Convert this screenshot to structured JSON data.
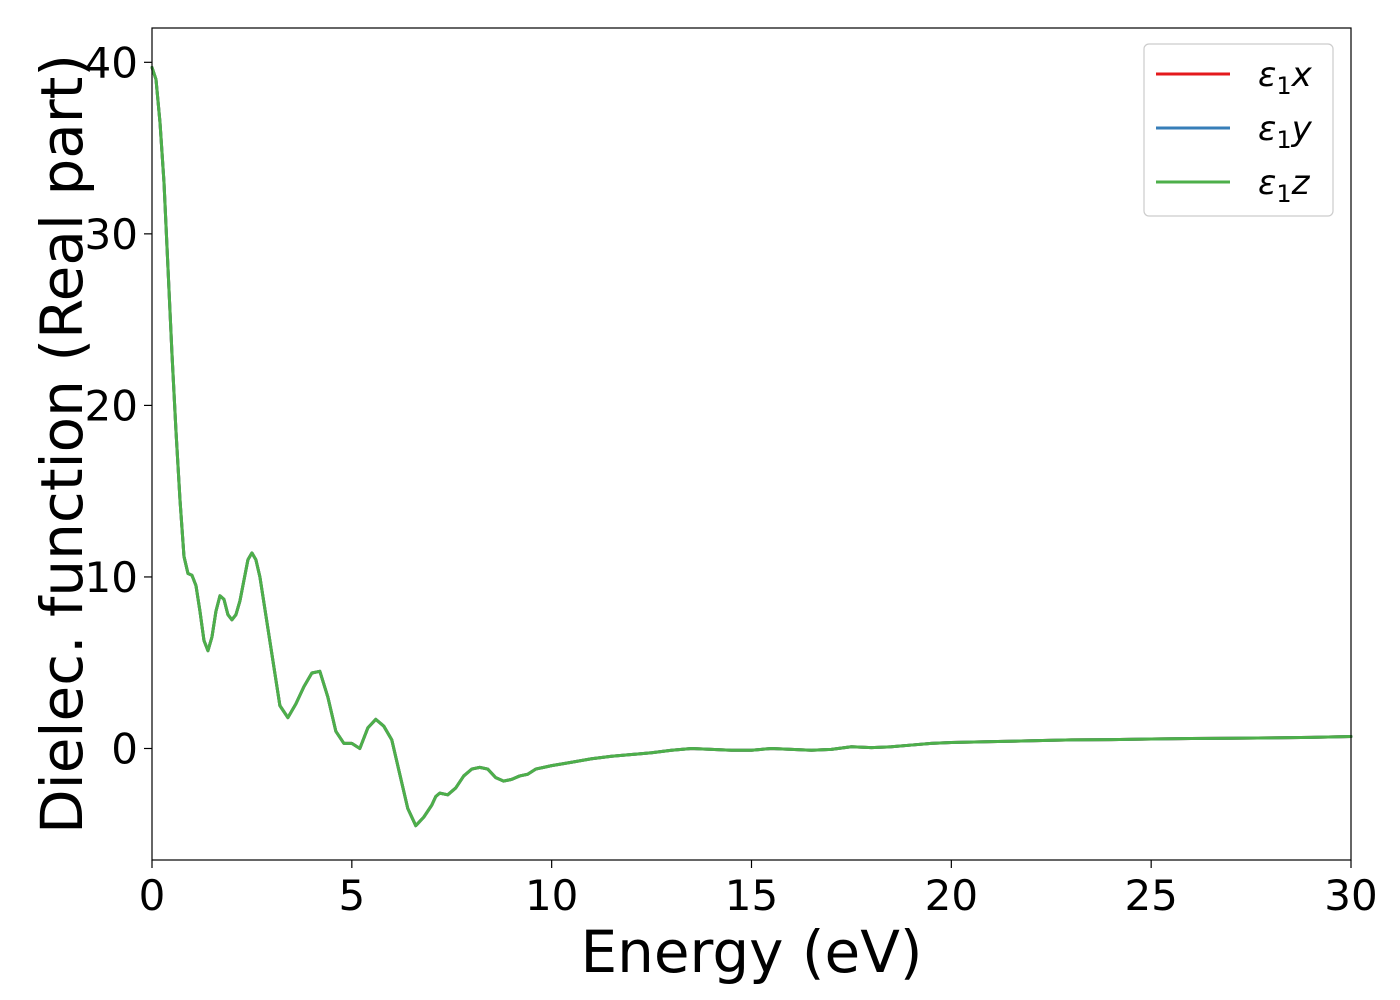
{
  "chart_data": {
    "type": "line",
    "title": "",
    "xlabel": "Energy (eV)",
    "ylabel": "Dielec. function (Real part)",
    "xlim": [
      0,
      30
    ],
    "ylim": [
      -6.5,
      42
    ],
    "xticks": [
      0,
      5,
      10,
      15,
      20,
      25,
      30
    ],
    "yticks": [
      0,
      10,
      20,
      30,
      40
    ],
    "grid": false,
    "legend_position": "top-right",
    "x": [
      0,
      0.1,
      0.2,
      0.3,
      0.4,
      0.5,
      0.6,
      0.7,
      0.8,
      0.9,
      1.0,
      1.1,
      1.2,
      1.3,
      1.4,
      1.5,
      1.6,
      1.7,
      1.8,
      1.9,
      2.0,
      2.1,
      2.2,
      2.3,
      2.4,
      2.5,
      2.6,
      2.7,
      2.8,
      2.9,
      3.0,
      3.2,
      3.4,
      3.6,
      3.8,
      4.0,
      4.2,
      4.4,
      4.6,
      4.8,
      5.0,
      5.2,
      5.4,
      5.6,
      5.8,
      6.0,
      6.2,
      6.4,
      6.6,
      6.8,
      7.0,
      7.1,
      7.2,
      7.4,
      7.6,
      7.8,
      8.0,
      8.2,
      8.4,
      8.6,
      8.8,
      9.0,
      9.2,
      9.4,
      9.6,
      9.8,
      10.0,
      10.5,
      11.0,
      11.5,
      12.0,
      12.5,
      13.0,
      13.5,
      14.0,
      14.5,
      15.0,
      15.5,
      16.0,
      16.5,
      17.0,
      17.5,
      18.0,
      18.5,
      19.0,
      19.5,
      20.0,
      21.0,
      22.0,
      23.0,
      24.0,
      25.0,
      26.0,
      27.0,
      28.0,
      29.0,
      30.0
    ],
    "series": [
      {
        "name": "ε1x",
        "color": "#e41a1c",
        "values": [
          39.7,
          39.0,
          36.5,
          33.0,
          28.0,
          23.0,
          18.5,
          14.5,
          11.2,
          10.2,
          10.1,
          9.5,
          8.0,
          6.3,
          5.7,
          6.5,
          8.0,
          8.9,
          8.7,
          7.8,
          7.5,
          7.8,
          8.6,
          9.8,
          11.0,
          11.4,
          11.0,
          10.0,
          8.5,
          7.0,
          5.5,
          2.5,
          1.8,
          2.6,
          3.6,
          4.4,
          4.5,
          3.0,
          1.0,
          0.3,
          0.3,
          0.0,
          1.2,
          1.7,
          1.3,
          0.5,
          -1.5,
          -3.5,
          -4.5,
          -4.0,
          -3.3,
          -2.8,
          -2.6,
          -2.7,
          -2.3,
          -1.6,
          -1.2,
          -1.1,
          -1.2,
          -1.7,
          -1.9,
          -1.8,
          -1.6,
          -1.5,
          -1.2,
          -1.1,
          -1.0,
          -0.8,
          -0.6,
          -0.45,
          -0.35,
          -0.25,
          -0.1,
          0.0,
          -0.05,
          -0.1,
          -0.1,
          0.0,
          -0.05,
          -0.1,
          -0.05,
          0.1,
          0.05,
          0.1,
          0.2,
          0.3,
          0.35,
          0.4,
          0.45,
          0.5,
          0.52,
          0.55,
          0.58,
          0.6,
          0.62,
          0.65,
          0.7
        ]
      },
      {
        "name": "ε1y",
        "color": "#377eb8",
        "values": [
          39.7,
          39.0,
          36.5,
          33.0,
          28.0,
          23.0,
          18.5,
          14.5,
          11.2,
          10.2,
          10.1,
          9.5,
          8.0,
          6.3,
          5.7,
          6.5,
          8.0,
          8.9,
          8.7,
          7.8,
          7.5,
          7.8,
          8.6,
          9.8,
          11.0,
          11.4,
          11.0,
          10.0,
          8.5,
          7.0,
          5.5,
          2.5,
          1.8,
          2.6,
          3.6,
          4.4,
          4.5,
          3.0,
          1.0,
          0.3,
          0.3,
          0.0,
          1.2,
          1.7,
          1.3,
          0.5,
          -1.5,
          -3.5,
          -4.5,
          -4.0,
          -3.3,
          -2.8,
          -2.6,
          -2.7,
          -2.3,
          -1.6,
          -1.2,
          -1.1,
          -1.2,
          -1.7,
          -1.9,
          -1.8,
          -1.6,
          -1.5,
          -1.2,
          -1.1,
          -1.0,
          -0.8,
          -0.6,
          -0.45,
          -0.35,
          -0.25,
          -0.1,
          0.0,
          -0.05,
          -0.1,
          -0.1,
          0.0,
          -0.05,
          -0.1,
          -0.05,
          0.1,
          0.05,
          0.1,
          0.2,
          0.3,
          0.35,
          0.4,
          0.45,
          0.5,
          0.52,
          0.55,
          0.58,
          0.6,
          0.62,
          0.65,
          0.7
        ]
      },
      {
        "name": "ε1z",
        "color": "#4daf4a",
        "values": [
          39.7,
          39.0,
          36.5,
          33.0,
          28.0,
          23.0,
          18.5,
          14.5,
          11.2,
          10.2,
          10.1,
          9.5,
          8.0,
          6.3,
          5.7,
          6.5,
          8.0,
          8.9,
          8.7,
          7.8,
          7.5,
          7.8,
          8.6,
          9.8,
          11.0,
          11.4,
          11.0,
          10.0,
          8.5,
          7.0,
          5.5,
          2.5,
          1.8,
          2.6,
          3.6,
          4.4,
          4.5,
          3.0,
          1.0,
          0.3,
          0.3,
          0.0,
          1.2,
          1.7,
          1.3,
          0.5,
          -1.5,
          -3.5,
          -4.5,
          -4.0,
          -3.3,
          -2.8,
          -2.6,
          -2.7,
          -2.3,
          -1.6,
          -1.2,
          -1.1,
          -1.2,
          -1.7,
          -1.9,
          -1.8,
          -1.6,
          -1.5,
          -1.2,
          -1.1,
          -1.0,
          -0.8,
          -0.6,
          -0.45,
          -0.35,
          -0.25,
          -0.1,
          0.0,
          -0.05,
          -0.1,
          -0.1,
          0.0,
          -0.05,
          -0.1,
          -0.05,
          0.1,
          0.05,
          0.1,
          0.2,
          0.3,
          0.35,
          0.4,
          0.45,
          0.5,
          0.52,
          0.55,
          0.58,
          0.6,
          0.62,
          0.65,
          0.7
        ]
      }
    ]
  },
  "legend": {
    "items": [
      {
        "symbol": "ε",
        "sub": "1",
        "var": "x",
        "color": "#e41a1c"
      },
      {
        "symbol": "ε",
        "sub": "1",
        "var": "y",
        "color": "#377eb8"
      },
      {
        "symbol": "ε",
        "sub": "1",
        "var": "z",
        "color": "#4daf4a"
      }
    ]
  }
}
